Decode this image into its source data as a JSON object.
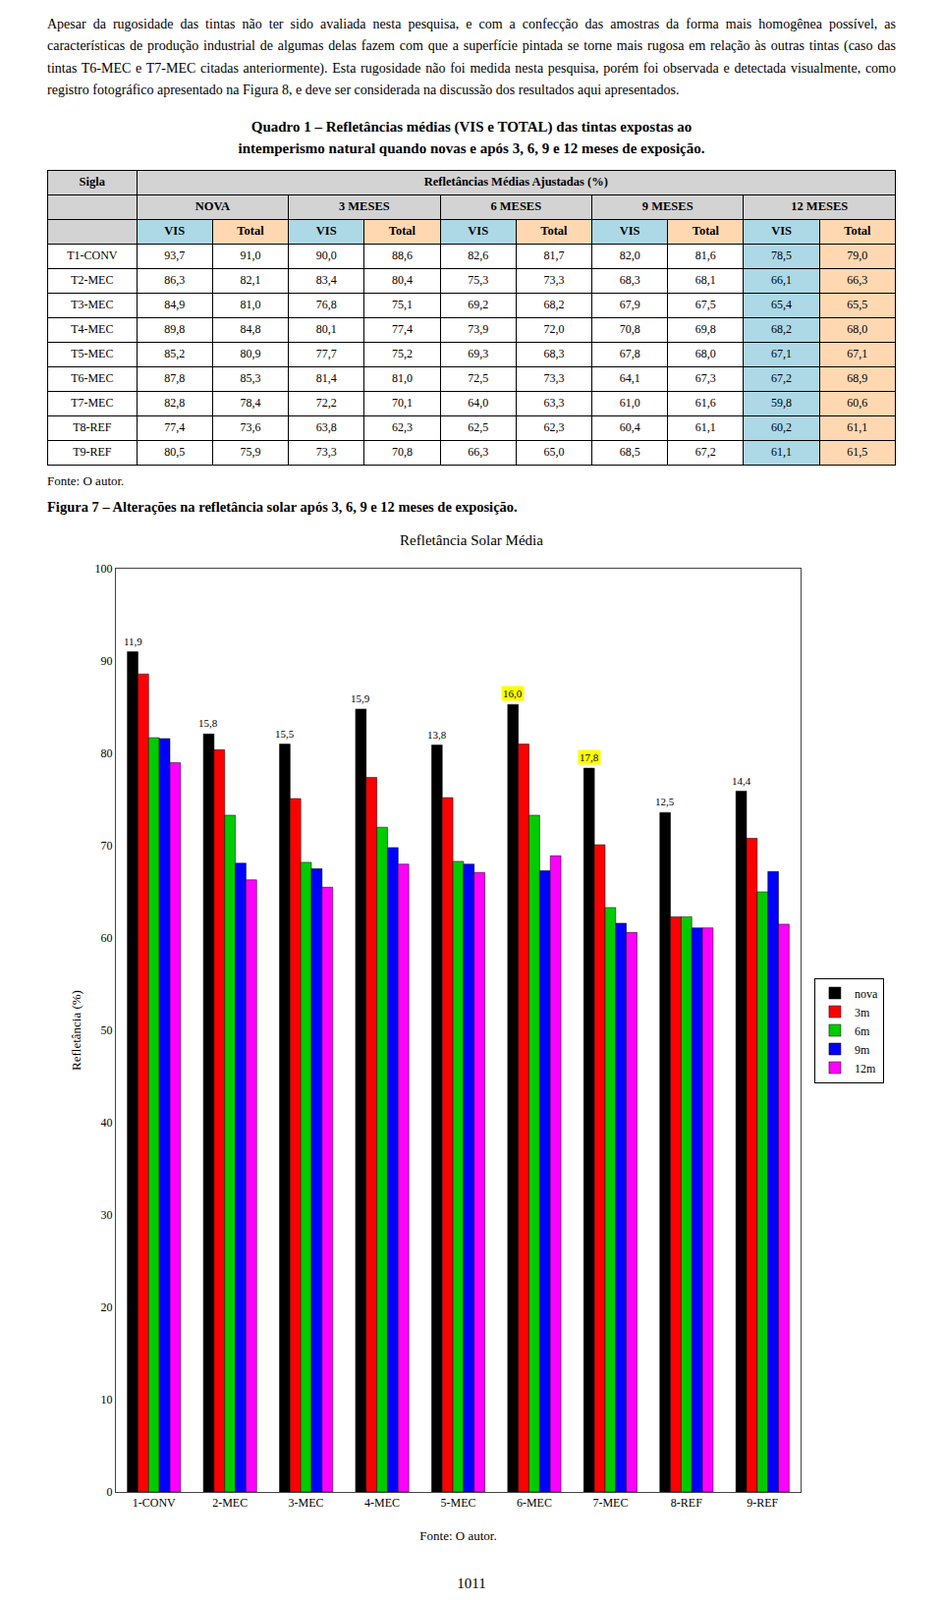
{
  "body_text": "Apesar da rugosidade das tintas não ter sido avaliada nesta pesquisa, e com a confecção das amostras da forma mais homogênea possível, as características de produção industrial de algumas delas fazem com que a superfície pintada se torne mais rugosa em relação às outras tintas (caso das tintas T6-MEC e T7-MEC citadas anteriormente). Esta rugosidade não foi medida nesta pesquisa, porém foi observada e detectada visualmente, como registro fotográfico apresentado na Figura 8, e deve ser considerada na discussão dos resultados aqui apresentados.",
  "table": {
    "title": [
      "Quadro 1 – Refletâncias médias (VIS e TOTAL) das tintas expostas ao",
      "intemperismo natural quando novas e após 3, 6, 9 e 12 meses de exposição."
    ],
    "header": [
      "Sigla",
      "Refletâncias Médias Ajustadas (%)"
    ],
    "periods": [
      "NOVA",
      "3 MESES",
      "6 MESES",
      "9 MESES",
      "12 MESES"
    ],
    "subheaders": [
      "VIS",
      "Total"
    ],
    "rows": [
      [
        "T1-CONV",
        "93,7",
        "91,0",
        "90,0",
        "88,6",
        "82,6",
        "81,7",
        "82,0",
        "81,6",
        "78,5",
        "79,0"
      ],
      [
        "T2-MEC",
        "86,3",
        "82,1",
        "83,4",
        "80,4",
        "75,3",
        "73,3",
        "68,3",
        "68,1",
        "66,1",
        "66,3"
      ],
      [
        "T3-MEC",
        "84,9",
        "81,0",
        "76,8",
        "75,1",
        "69,2",
        "68,2",
        "67,9",
        "67,5",
        "65,4",
        "65,5"
      ],
      [
        "T4-MEC",
        "89,8",
        "84,8",
        "80,1",
        "77,4",
        "73,9",
        "72,0",
        "70,8",
        "69,8",
        "68,2",
        "68,0"
      ],
      [
        "T5-MEC",
        "85,2",
        "80,9",
        "77,7",
        "75,2",
        "69,3",
        "68,3",
        "67,8",
        "68,0",
        "67,1",
        "67,1"
      ],
      [
        "T6-MEC",
        "87,8",
        "85,3",
        "81,4",
        "81,0",
        "72,5",
        "73,3",
        "64,1",
        "67,3",
        "67,2",
        "68,9"
      ],
      [
        "T7-MEC",
        "82,8",
        "78,4",
        "72,2",
        "70,1",
        "64,0",
        "63,3",
        "61,0",
        "61,6",
        "59,8",
        "60,6"
      ],
      [
        "T8-REF",
        "77,4",
        "73,6",
        "63,8",
        "62,3",
        "62,5",
        "62,3",
        "60,4",
        "61,1",
        "60,2",
        "61,1"
      ],
      [
        "T9-REF",
        "80,5",
        "75,9",
        "73,3",
        "70,8",
        "66,3",
        "65,0",
        "68,5",
        "67,2",
        "61,1",
        "61,5"
      ]
    ],
    "colors": {
      "header": "#d3d3d3",
      "VIS": "#add8e6",
      "Total": "#ffd8b1"
    },
    "source": "Fonte: O autor."
  },
  "figure_title": "Figura 7 – Alterações na refletância solar após 3, 6, 9 e 12 meses de exposição.",
  "chart_data": {
    "type": "bar",
    "title": "Refletância Solar Média",
    "x_label": "Fonte: O autor.",
    "y_label": "Refletância (%)",
    "categories": [
      "1-CONV",
      "2-MEC",
      "3-MEC",
      "4-MEC",
      "5-MEC",
      "6-MEC",
      "7-MEC",
      "8-REF",
      "9-REF"
    ],
    "series": [
      {
        "name": "nova",
        "color": "#000000",
        "values": [
          91.0,
          82.1,
          81.0,
          84.8,
          80.9,
          85.3,
          78.4,
          73.6,
          75.9
        ]
      },
      {
        "name": "3m",
        "color": "#ff0000",
        "values": [
          88.6,
          80.4,
          75.1,
          77.4,
          75.2,
          81.0,
          70.1,
          62.3,
          70.8
        ]
      },
      {
        "name": "6m",
        "color": "#00cc00",
        "values": [
          81.7,
          73.3,
          68.2,
          72.0,
          68.3,
          73.3,
          63.3,
          62.3,
          65.0
        ]
      },
      {
        "name": "9m",
        "color": "#0000ff",
        "values": [
          81.6,
          68.1,
          67.5,
          69.8,
          68.0,
          67.3,
          61.6,
          61.1,
          67.2
        ]
      },
      {
        "name": "12m",
        "color": "#ff00ff",
        "values": [
          79.0,
          66.3,
          65.5,
          68.0,
          67.1,
          68.9,
          60.6,
          61.1,
          61.5
        ]
      }
    ],
    "annotations": [
      {
        "category": "1-CONV",
        "series": "nova",
        "text": "11,9"
      },
      {
        "category": "2-MEC",
        "series": "nova",
        "text": "15,8"
      },
      {
        "category": "3-MEC",
        "series": "nova",
        "text": "15,5"
      },
      {
        "category": "4-MEC",
        "series": "nova",
        "text": "15,9"
      },
      {
        "category": "5-MEC",
        "series": "nova",
        "text": "13,8"
      },
      {
        "category": "6-MEC",
        "series": "nova",
        "text": "16,0",
        "color": "#ffff00"
      },
      {
        "category": "7-MEC",
        "series": "nova",
        "text": "17,8",
        "color": "#ffff00"
      },
      {
        "category": "8-REF",
        "series": "nova",
        "text": "12,5"
      },
      {
        "category": "9-REF",
        "series": "nova",
        "text": "14,4"
      }
    ],
    "ylim": [
      0,
      100
    ],
    "yticks": [
      0,
      10,
      20,
      30,
      40,
      50,
      60,
      70,
      80,
      90,
      100
    ],
    "grid": false,
    "legend": "right"
  },
  "page_number": "1011"
}
